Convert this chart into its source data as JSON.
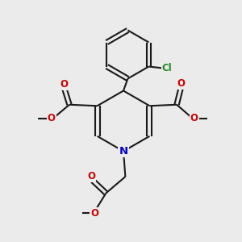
{
  "bg_color": "#ebebeb",
  "bond_color": "#1a1a1a",
  "N_color": "#0000cc",
  "O_color": "#cc0000",
  "Cl_color": "#228B22",
  "lw": 1.5,
  "fig_size": [
    3.0,
    3.0
  ],
  "dpi": 100,
  "xlim": [
    0,
    10
  ],
  "ylim": [
    0,
    10
  ]
}
